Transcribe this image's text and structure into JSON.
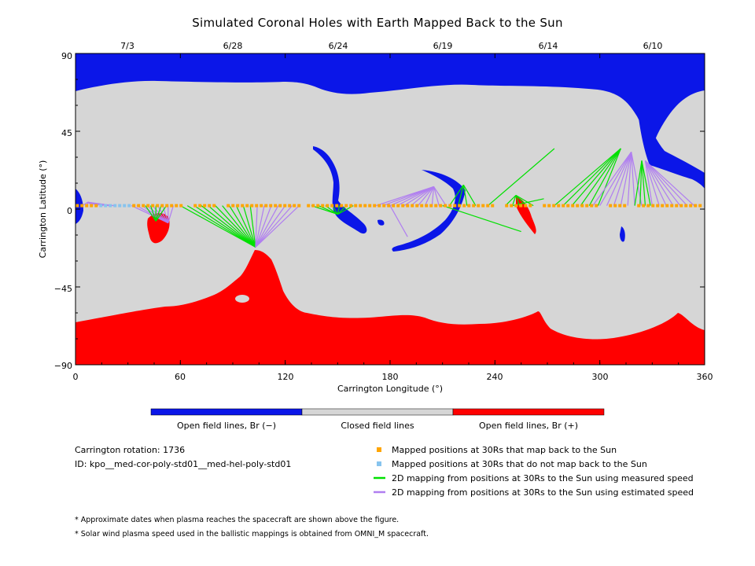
{
  "title": "Simulated Coronal Holes with Earth Mapped Back to the Sun",
  "colors": {
    "open_negative": "#0b16e8",
    "open_positive": "#ff0000",
    "closed": "#d6d6d6",
    "mapped": "#ffa500",
    "unmapped": "#87c4ee",
    "measured": "#00e000",
    "estimated": "#b07ef0"
  },
  "map": {
    "x_label": "Carrington Longitude (°)",
    "y_label": "Carrington Latitude (°)",
    "x_ticks": [
      "0",
      "60",
      "120",
      "180",
      "240",
      "300",
      "360"
    ],
    "y_ticks": [
      "90",
      "45",
      "0",
      "−45",
      "−90"
    ],
    "date_ticks": [
      "7/3",
      "6/28",
      "6/24",
      "6/19",
      "6/14",
      "6/10"
    ]
  },
  "colorbar": {
    "labels": [
      "Open field lines, Br (−)",
      "Closed field lines",
      "Open field lines, Br (+)"
    ]
  },
  "info": {
    "rotation": "Carrington rotation: 1736",
    "id": "ID: kpo__med-cor-poly-std01__med-hel-poly-std01"
  },
  "legend": [
    {
      "label": "Mapped positions at 30Rs that map back to the Sun",
      "symbol": "square",
      "color": "#ffa500"
    },
    {
      "label": "Mapped positions at 30Rs that do not map back to the Sun",
      "symbol": "square",
      "color": "#87c4ee"
    },
    {
      "label": "2D mapping from positions at 30Rs to the Sun using measured speed",
      "symbol": "line",
      "color": "#00e000"
    },
    {
      "label": "2D mapping from positions at 30Rs to the Sun using estimated speed",
      "symbol": "line",
      "color": "#b07ef0"
    }
  ],
  "notes": [
    "* Approximate dates when plasma reaches the spacecraft are shown above the figure.",
    "* Solar wind plasma speed used in the ballistic mappings is obtained from OMNI_M spacecraft."
  ]
}
